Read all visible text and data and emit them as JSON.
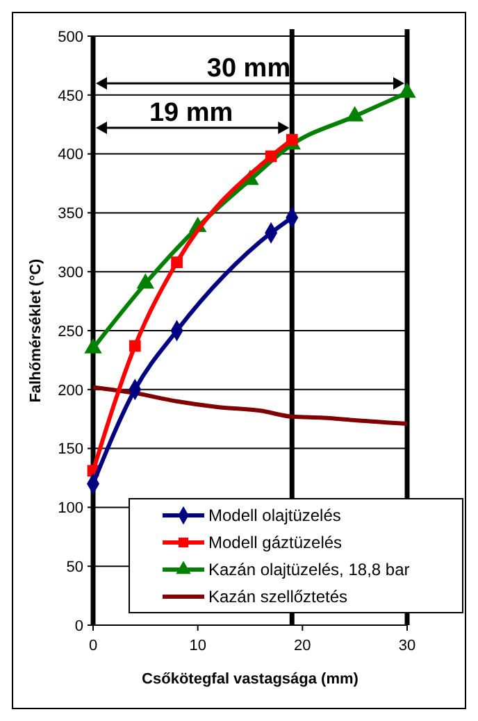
{
  "chart_data": {
    "type": "line",
    "xlabel": "Csőkötegfal vastagsága (mm)",
    "ylabel": "Falhőmérséklet (°C)",
    "xlim": [
      0,
      30
    ],
    "xticks": [
      0,
      10,
      20,
      30
    ],
    "ylim": [
      0,
      500
    ],
    "yticks": [
      0,
      50,
      100,
      150,
      200,
      250,
      300,
      350,
      400,
      450,
      500
    ],
    "grid": "y",
    "legend": "bottom right",
    "line_style": "solid",
    "series": [
      {
        "name": "Modell olajtüzelés",
        "color": "#000080",
        "marker": "diamond",
        "x": [
          0,
          4,
          8,
          17,
          19
        ],
        "values": [
          120,
          200,
          250,
          333,
          346
        ]
      },
      {
        "name": "Modell gáztüzelés",
        "color": "#ff0000",
        "marker": "square",
        "x": [
          0,
          4,
          8,
          17,
          19
        ],
        "values": [
          131,
          237,
          308,
          398,
          412
        ]
      },
      {
        "name": "Kazán olajtüzelés, 18,8 bar",
        "color": "#008000",
        "marker": "triangle",
        "x": [
          0,
          5,
          10,
          15,
          19,
          25,
          30
        ],
        "values": [
          235,
          290,
          338,
          378,
          408,
          432,
          452
        ]
      },
      {
        "name": "Kazán szellőztetés",
        "color": "#800000",
        "marker": "none",
        "x": [
          0,
          4,
          8,
          12,
          16,
          19,
          22,
          25,
          28,
          30
        ],
        "values": [
          202,
          197,
          190,
          185,
          182,
          177,
          176,
          174,
          172,
          171
        ]
      }
    ],
    "ref_lines": [
      {
        "axis": "x",
        "value": 30,
        "color": "#000000"
      },
      {
        "axis": "x",
        "value": 19,
        "color": "#000000"
      }
    ],
    "annotations": [
      "30 mm",
      "19 mm"
    ]
  }
}
